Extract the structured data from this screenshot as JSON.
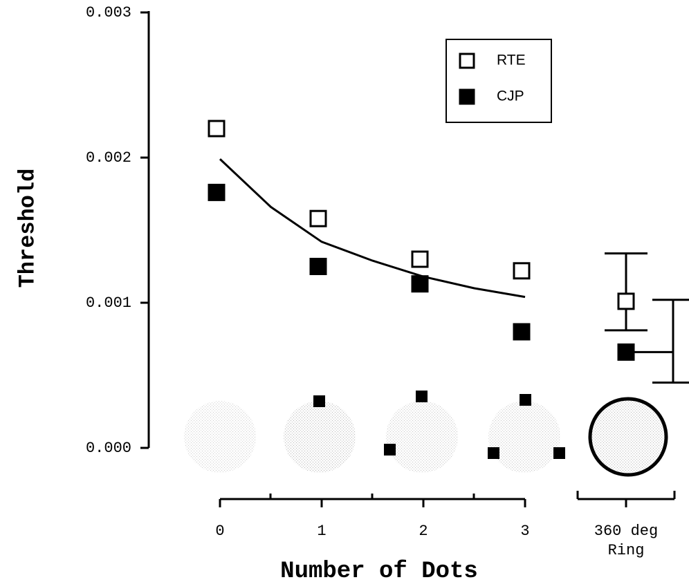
{
  "chart_data": {
    "type": "scatter",
    "xlabel": "Number of Dots",
    "ylabel": "Threshold",
    "categories": [
      "0",
      "1",
      "2",
      "3",
      "360 deg Ring"
    ],
    "ylim": [
      0,
      0.003
    ],
    "yticks": [
      {
        "value": 0,
        "label": "0.000"
      },
      0.001,
      0.002,
      0.003
    ],
    "legend": "upper right",
    "series": [
      {
        "name": "RTE",
        "color": "#ffffff",
        "values": [
          0.0022,
          0.00158,
          0.0013,
          0.00122,
          0.00101
        ],
        "error_low": [
          null,
          null,
          null,
          null,
          0.00081
        ],
        "error_high": [
          null,
          null,
          null,
          null,
          0.00134
        ]
      },
      {
        "name": "CJP",
        "color": "#000000",
        "values": [
          0.00176,
          0.00125,
          0.00113,
          0.0008,
          0.00066
        ],
        "error_low": [
          null,
          null,
          null,
          null,
          0.00045
        ],
        "error_high": [
          null,
          null,
          null,
          null,
          0.00102
        ]
      }
    ],
    "fit_line": {
      "x": [
        0,
        0.5,
        1,
        1.5,
        2,
        2.5,
        3
      ],
      "values": [
        0.00199,
        0.00166,
        0.00142,
        0.00129,
        0.00118,
        0.0011,
        0.00104
      ],
      "color": "#000000"
    }
  }
}
